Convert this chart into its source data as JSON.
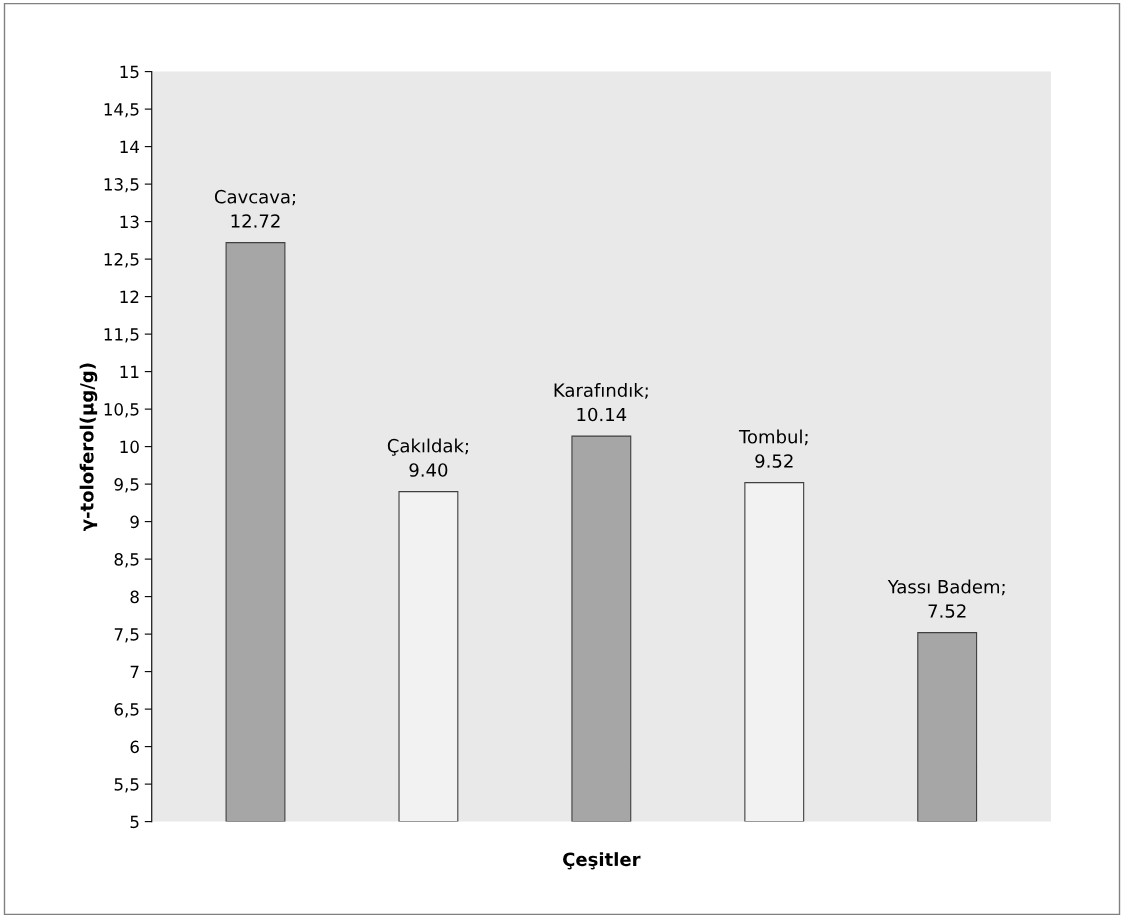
{
  "chart_data": {
    "type": "bar",
    "xlabel": "Çeşitler",
    "ylabel": "γ-toloferol(µg/g)",
    "categories": [
      null,
      null,
      null,
      null,
      null
    ],
    "values": [
      12.72,
      9.4,
      10.14,
      9.52,
      7.52
    ],
    "value_labels": [
      "Cavcava;\n12.72",
      "Çakıldak;\n9.40",
      "Karafındık;\n10.14",
      "Tombul;\n9.52",
      "Yassı Badem;\n7.52"
    ],
    "colors": [
      "#a6a6a6",
      "#f2f2f2",
      "#a6a6a6",
      "#f2f2f2",
      "#a6a6a6"
    ],
    "ylim": [
      5,
      15
    ],
    "yticks": [
      5,
      {
        "value": 5.5,
        "label": "5,5"
      },
      6,
      {
        "value": 6.5,
        "label": "6,5"
      },
      7,
      {
        "value": 7.5,
        "label": "7,5"
      },
      8,
      {
        "value": 8.5,
        "label": "8,5"
      },
      9,
      {
        "value": 9.5,
        "label": "9,5"
      },
      10,
      {
        "value": 10.5,
        "label": "10,5"
      },
      11,
      {
        "value": 11.5,
        "label": "11,5"
      },
      12,
      {
        "value": 12.5,
        "label": "12,5"
      },
      13,
      {
        "value": 13.5,
        "label": "13,5"
      },
      14,
      {
        "value": 14.5,
        "label": "14,5"
      },
      15
    ],
    "tick_labels": "y",
    "grid": false,
    "legend": false
  }
}
